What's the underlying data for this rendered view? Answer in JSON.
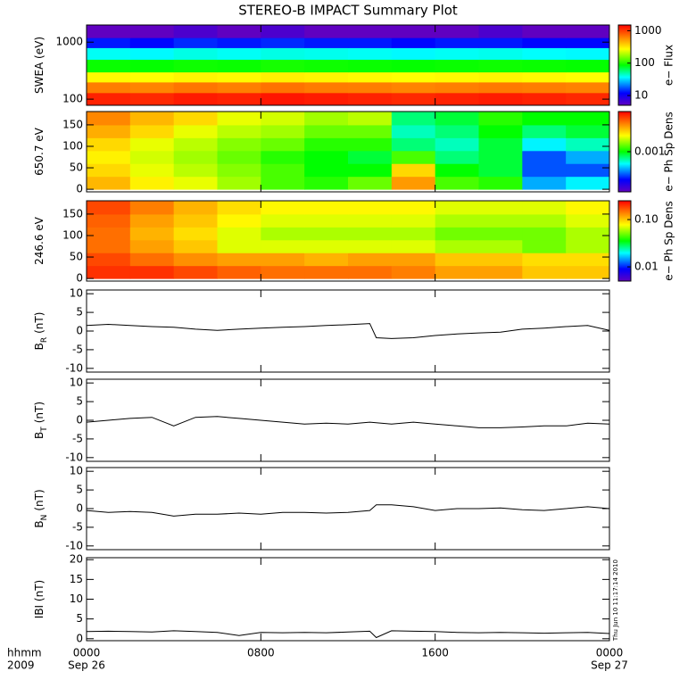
{
  "chart_data": [
    {
      "type": "heatmap",
      "title": "STEREO-B IMPACT Summary Plot",
      "ylabel": "SWEA (eV)",
      "ylog": true,
      "xlim": [
        0,
        24
      ],
      "xticks": [
        0,
        8,
        16,
        24
      ],
      "ylim": [
        78,
        2000
      ],
      "yticks": [
        100,
        1000
      ],
      "x_bins": [
        0,
        2,
        4,
        6,
        8,
        10,
        12,
        14,
        16,
        18,
        20,
        22,
        24
      ],
      "y_bins": [
        78,
        130,
        200,
        300,
        500,
        800,
        1200,
        2000
      ],
      "values": [
        [
          1200,
          1150,
          1250,
          1200,
          1300,
          1250,
          1200,
          1150,
          1200,
          1250,
          1200,
          1150
        ],
        [
          650,
          620,
          680,
          640,
          700,
          660,
          650,
          620,
          640,
          670,
          650,
          630
        ],
        [
          280,
          270,
          290,
          280,
          300,
          290,
          280,
          270,
          280,
          290,
          280,
          270
        ],
        [
          90,
          88,
          92,
          90,
          95,
          92,
          90,
          88,
          90,
          92,
          90,
          88
        ],
        [
          38,
          36,
          40,
          38,
          40,
          39,
          38,
          36,
          38,
          39,
          37,
          36
        ],
        [
          13,
          12,
          14,
          13,
          14,
          13,
          13,
          12,
          13,
          13,
          12,
          12
        ],
        [
          5,
          5,
          6,
          5,
          6,
          5,
          5,
          5,
          5,
          6,
          5,
          5
        ]
      ],
      "clim": [
        5,
        1500
      ],
      "clog": true,
      "cticks": [
        10,
        100,
        1000
      ],
      "clabel": "e− Flux"
    },
    {
      "type": "heatmap",
      "ylabel": "650.7 eV",
      "xlim": [
        0,
        24
      ],
      "xticks": [
        0,
        8,
        16,
        24
      ],
      "ylim": [
        -6,
        181
      ],
      "yticks": [
        0,
        50,
        100,
        150
      ],
      "x_bins": [
        0,
        2,
        4,
        6,
        8,
        10,
        12,
        14,
        16,
        18,
        20,
        22,
        24
      ],
      "y_bins": [
        0,
        30,
        60,
        90,
        120,
        150,
        180
      ],
      "values": [
        [
          0.0025,
          0.002,
          0.0018,
          0.0015,
          0.0012,
          0.0011,
          0.0013,
          0.0028,
          0.0012,
          0.0011,
          0.0005,
          0.0006
        ],
        [
          0.0022,
          0.0018,
          0.0016,
          0.0014,
          0.0012,
          0.001,
          0.001,
          0.0022,
          0.001,
          0.0009,
          0.0004,
          0.0004
        ],
        [
          0.002,
          0.0017,
          0.0015,
          0.0013,
          0.0011,
          0.001,
          0.0009,
          0.0012,
          0.0008,
          0.0009,
          0.0004,
          0.0005
        ],
        [
          0.0022,
          0.0018,
          0.0016,
          0.0014,
          0.0013,
          0.0011,
          0.0011,
          0.0008,
          0.0007,
          0.0009,
          0.0006,
          0.0007
        ],
        [
          0.0026,
          0.0022,
          0.0018,
          0.0016,
          0.0015,
          0.0013,
          0.0013,
          0.0007,
          0.0008,
          0.001,
          0.0008,
          0.0009
        ],
        [
          0.003,
          0.0025,
          0.0022,
          0.0018,
          0.0017,
          0.0015,
          0.0016,
          0.0008,
          0.0009,
          0.0011,
          0.001,
          0.001
        ]
      ],
      "clim": [
        0.0002,
        0.005
      ],
      "clog": true,
      "cticks": [
        0.001
      ],
      "clabel": "e− Ph Sp Dens"
    },
    {
      "type": "heatmap",
      "ylabel": "246.6 eV",
      "xlim": [
        0,
        24
      ],
      "xticks": [
        0,
        8,
        16,
        24
      ],
      "ylim": [
        -6,
        181
      ],
      "yticks": [
        0,
        50,
        100,
        150
      ],
      "x_bins": [
        0,
        2,
        4,
        6,
        8,
        10,
        12,
        14,
        16,
        18,
        20,
        22,
        24
      ],
      "y_bins": [
        0,
        30,
        60,
        90,
        120,
        150,
        180
      ],
      "values": [
        [
          0.2,
          0.2,
          0.18,
          0.16,
          0.15,
          0.15,
          0.15,
          0.14,
          0.12,
          0.12,
          0.1,
          0.1
        ],
        [
          0.18,
          0.15,
          0.13,
          0.12,
          0.12,
          0.11,
          0.12,
          0.12,
          0.1,
          0.1,
          0.09,
          0.09
        ],
        [
          0.15,
          0.12,
          0.1,
          0.07,
          0.07,
          0.07,
          0.07,
          0.07,
          0.06,
          0.06,
          0.05,
          0.06
        ],
        [
          0.15,
          0.11,
          0.09,
          0.07,
          0.06,
          0.06,
          0.06,
          0.06,
          0.05,
          0.05,
          0.05,
          0.06
        ],
        [
          0.16,
          0.12,
          0.1,
          0.08,
          0.07,
          0.07,
          0.07,
          0.07,
          0.06,
          0.06,
          0.06,
          0.07
        ],
        [
          0.18,
          0.14,
          0.11,
          0.09,
          0.08,
          0.08,
          0.08,
          0.08,
          0.07,
          0.07,
          0.07,
          0.08
        ]
      ],
      "clim": [
        0.005,
        0.25
      ],
      "clog": true,
      "cticks": [
        0.01,
        {
          "value": 0.1,
          "label": "0.10"
        }
      ],
      "clabel": "e− Ph Sp Dens"
    },
    {
      "type": "line",
      "ylabel": "B",
      "ylabel_sub": "R",
      "ylabel_unit": "(nT)",
      "color": "#000000",
      "xlim": [
        0,
        24
      ],
      "xticks": [
        0,
        8,
        16,
        24
      ],
      "ylim": [
        -11,
        11
      ],
      "yticks": [
        -10,
        -5,
        0,
        5,
        10
      ],
      "x": [
        0,
        1,
        2,
        3,
        4,
        5,
        6,
        7,
        8,
        9,
        10,
        11,
        12,
        13,
        13.3,
        14,
        15,
        16,
        17,
        18,
        19,
        20,
        21,
        22,
        23,
        24
      ],
      "values": [
        1.5,
        1.8,
        1.5,
        1.2,
        1.0,
        0.5,
        0.2,
        0.5,
        0.8,
        1.0,
        1.2,
        1.5,
        1.7,
        2.0,
        -1.8,
        -2.0,
        -1.8,
        -1.2,
        -0.8,
        -0.5,
        -0.3,
        0.5,
        0.8,
        1.2,
        1.5,
        0.2
      ]
    },
    {
      "type": "line",
      "ylabel": "B",
      "ylabel_sub": "T",
      "ylabel_unit": "(nT)",
      "color": "#000000",
      "xlim": [
        0,
        24
      ],
      "xticks": [
        0,
        8,
        16,
        24
      ],
      "ylim": [
        -11,
        11
      ],
      "yticks": [
        -10,
        -5,
        0,
        5,
        10
      ],
      "x": [
        0,
        1,
        2,
        3,
        4,
        5,
        6,
        7,
        8,
        9,
        10,
        11,
        12,
        13,
        14,
        15,
        16,
        17,
        18,
        19,
        20,
        21,
        22,
        23,
        24
      ],
      "values": [
        -0.5,
        0,
        0.5,
        0.8,
        -1.5,
        0.8,
        1.0,
        0.5,
        0,
        -0.5,
        -1.0,
        -0.8,
        -1.0,
        -0.5,
        -1.0,
        -0.5,
        -1.0,
        -1.5,
        -2.0,
        -2.0,
        -1.8,
        -1.5,
        -1.5,
        -0.8,
        -1.0
      ]
    },
    {
      "type": "line",
      "ylabel": "B",
      "ylabel_sub": "N",
      "ylabel_unit": "(nT)",
      "color": "#000000",
      "xlim": [
        0,
        24
      ],
      "xticks": [
        0,
        8,
        16,
        24
      ],
      "ylim": [
        -11,
        11
      ],
      "yticks": [
        -10,
        -5,
        0,
        5,
        10
      ],
      "x": [
        0,
        1,
        2,
        3,
        4,
        5,
        6,
        7,
        8,
        9,
        10,
        11,
        12,
        13,
        13.3,
        14,
        15,
        16,
        17,
        18,
        19,
        20,
        21,
        22,
        23,
        24
      ],
      "values": [
        -0.5,
        -1.0,
        -0.8,
        -1.0,
        -2.0,
        -1.5,
        -1.5,
        -1.2,
        -1.5,
        -1.0,
        -1.0,
        -1.2,
        -1.0,
        -0.5,
        1.0,
        1.0,
        0.5,
        -0.5,
        0,
        0,
        0.2,
        -0.3,
        -0.5,
        0,
        0.5,
        0
      ]
    },
    {
      "type": "line",
      "ylabel": "IBI (nT)",
      "color": "#000000",
      "xlim": [
        0,
        24
      ],
      "xticks": [
        {
          "value": 0,
          "label": "0000"
        },
        {
          "value": 8,
          "label": "0800"
        },
        {
          "value": 16,
          "label": "1600"
        },
        {
          "value": 24,
          "label": "0000"
        }
      ],
      "xtick_dates": [
        {
          "value": 0,
          "label": "Sep 26"
        },
        {
          "value": 24,
          "label": "Sep 27"
        }
      ],
      "xlabel_lines": [
        "hhmm",
        "2009"
      ],
      "annotation": "Thu Jun 10 11:17:14 2010",
      "ylim": [
        -0.5,
        20.5
      ],
      "yticks": [
        0,
        5,
        10,
        15,
        20
      ],
      "x": [
        0,
        1,
        2,
        3,
        4,
        5,
        6,
        7,
        8,
        9,
        10,
        11,
        12,
        13,
        13.3,
        14,
        15,
        16,
        17,
        18,
        19,
        20,
        21,
        22,
        23,
        24
      ],
      "values": [
        1.8,
        1.9,
        1.8,
        1.7,
        2.0,
        1.8,
        1.6,
        0.8,
        1.6,
        1.5,
        1.6,
        1.5,
        1.7,
        1.9,
        0.3,
        2.0,
        1.9,
        1.8,
        1.6,
        1.5,
        1.6,
        1.5,
        1.4,
        1.5,
        1.6,
        1.3
      ]
    }
  ]
}
